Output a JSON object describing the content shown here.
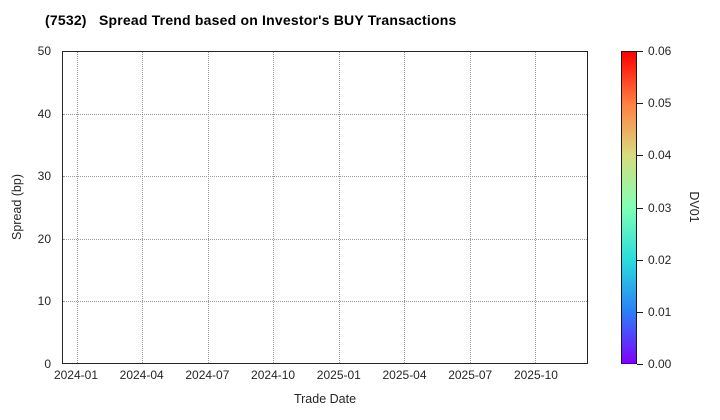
{
  "title": "(7532)   Spread Trend based on Investor's BUY Transactions",
  "colors": {
    "background": "#ffffff",
    "axis": "#262626",
    "grid": "#999999",
    "text": "#262626",
    "title_text": "#000000"
  },
  "chart_data": {
    "type": "scatter",
    "title": "(7532)   Spread Trend based on Investor's BUY Transactions",
    "xlabel": "Trade Date",
    "ylabel": "Spread (bp)",
    "x_tick_labels": [
      "2024-01",
      "2024-04",
      "2024-07",
      "2024-10",
      "2025-01",
      "2025-04",
      "2025-07",
      "2025-10"
    ],
    "x_tick_positions": [
      0.0266,
      0.1515,
      0.2764,
      0.4013,
      0.5263,
      0.6512,
      0.7761,
      0.9011
    ],
    "y_ticks": [
      0,
      10,
      20,
      30,
      40,
      50
    ],
    "ylim": [
      0,
      50
    ],
    "grid": true,
    "grid_style": "dotted",
    "legend_position": "none",
    "series": [],
    "colorbar": {
      "label": "DV01",
      "tick_labels": [
        "0.00",
        "0.01",
        "0.02",
        "0.03",
        "0.04",
        "0.05",
        "0.06"
      ],
      "tick_values": [
        0.0,
        0.01,
        0.02,
        0.03,
        0.04,
        0.05,
        0.06
      ],
      "range": [
        0.0,
        0.06
      ],
      "colormap": "rainbow",
      "gradient_stops_bottom_to_top": [
        "#8000FF",
        "#2B80F6",
        "#2BDDDD",
        "#80FFB5",
        "#D5DD80",
        "#FF8042",
        "#FF0000"
      ]
    }
  }
}
